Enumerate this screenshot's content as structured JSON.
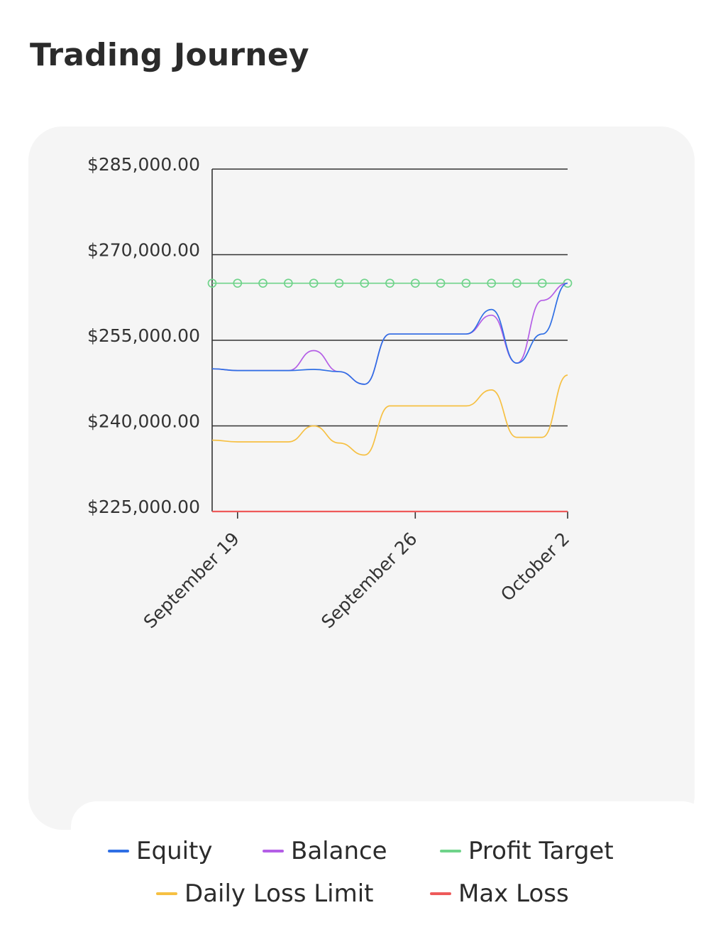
{
  "page": {
    "title": "Trading Journey"
  },
  "chart_data": {
    "type": "line",
    "title": "",
    "xlabel": "",
    "ylabel": "",
    "x_ticks": [
      "September 19",
      "September 26",
      "October 2"
    ],
    "x_tick_days": [
      "2023-09-19",
      "2023-09-26",
      "2023-10-02"
    ],
    "y_ticks": [
      "$225,000.00",
      "$240,000.00",
      "$255,000.00",
      "$270,000.00",
      "$285,000.00"
    ],
    "y_tick_values": [
      225000,
      240000,
      255000,
      270000,
      285000
    ],
    "ylim": [
      225000,
      285000
    ],
    "grid": "horizontal",
    "legend_position": "bottom",
    "x": [
      "2023-09-18",
      "2023-09-19",
      "2023-09-20",
      "2023-09-21",
      "2023-09-22",
      "2023-09-23",
      "2023-09-24",
      "2023-09-25",
      "2023-09-26",
      "2023-09-27",
      "2023-09-28",
      "2023-09-29",
      "2023-09-30",
      "2023-10-01",
      "2023-10-02"
    ],
    "series": [
      {
        "name": "Equity",
        "color": "#2f6fe4",
        "markers": false,
        "values": [
          250000,
          249700,
          249700,
          249700,
          249900,
          249500,
          247300,
          256100,
          256100,
          256100,
          256100,
          260400,
          251000,
          256100,
          265000
        ]
      },
      {
        "name": "Balance",
        "color": "#b45ee6",
        "markers": false,
        "values": [
          250000,
          249700,
          249700,
          249700,
          253200,
          249500,
          247300,
          256100,
          256100,
          256100,
          256100,
          259400,
          251000,
          262000,
          265000
        ]
      },
      {
        "name": "Profit Target",
        "color": "#6fd38a",
        "markers": true,
        "values": [
          265000,
          265000,
          265000,
          265000,
          265000,
          265000,
          265000,
          265000,
          265000,
          265000,
          265000,
          265000,
          265000,
          265000,
          265000
        ]
      },
      {
        "name": "Daily Loss Limit",
        "color": "#f6c042",
        "markers": false,
        "values": [
          237500,
          237200,
          237200,
          237200,
          240000,
          237000,
          234900,
          243500,
          243500,
          243500,
          243500,
          246300,
          238000,
          238000,
          248900
        ]
      },
      {
        "name": "Max Loss",
        "color": "#ee5a5a",
        "markers": false,
        "values": [
          225000,
          225000,
          225000,
          225000,
          225000,
          225000,
          225000,
          225000,
          225000,
          225000,
          225000,
          225000,
          225000,
          225000,
          225000
        ]
      }
    ]
  },
  "legend": [
    {
      "label": "Equity",
      "color": "#2f6fe4"
    },
    {
      "label": "Balance",
      "color": "#b45ee6"
    },
    {
      "label": "Profit Target",
      "color": "#6fd38a"
    },
    {
      "label": "Daily Loss Limit",
      "color": "#f6c042"
    },
    {
      "label": "Max Loss",
      "color": "#ee5a5a"
    }
  ]
}
